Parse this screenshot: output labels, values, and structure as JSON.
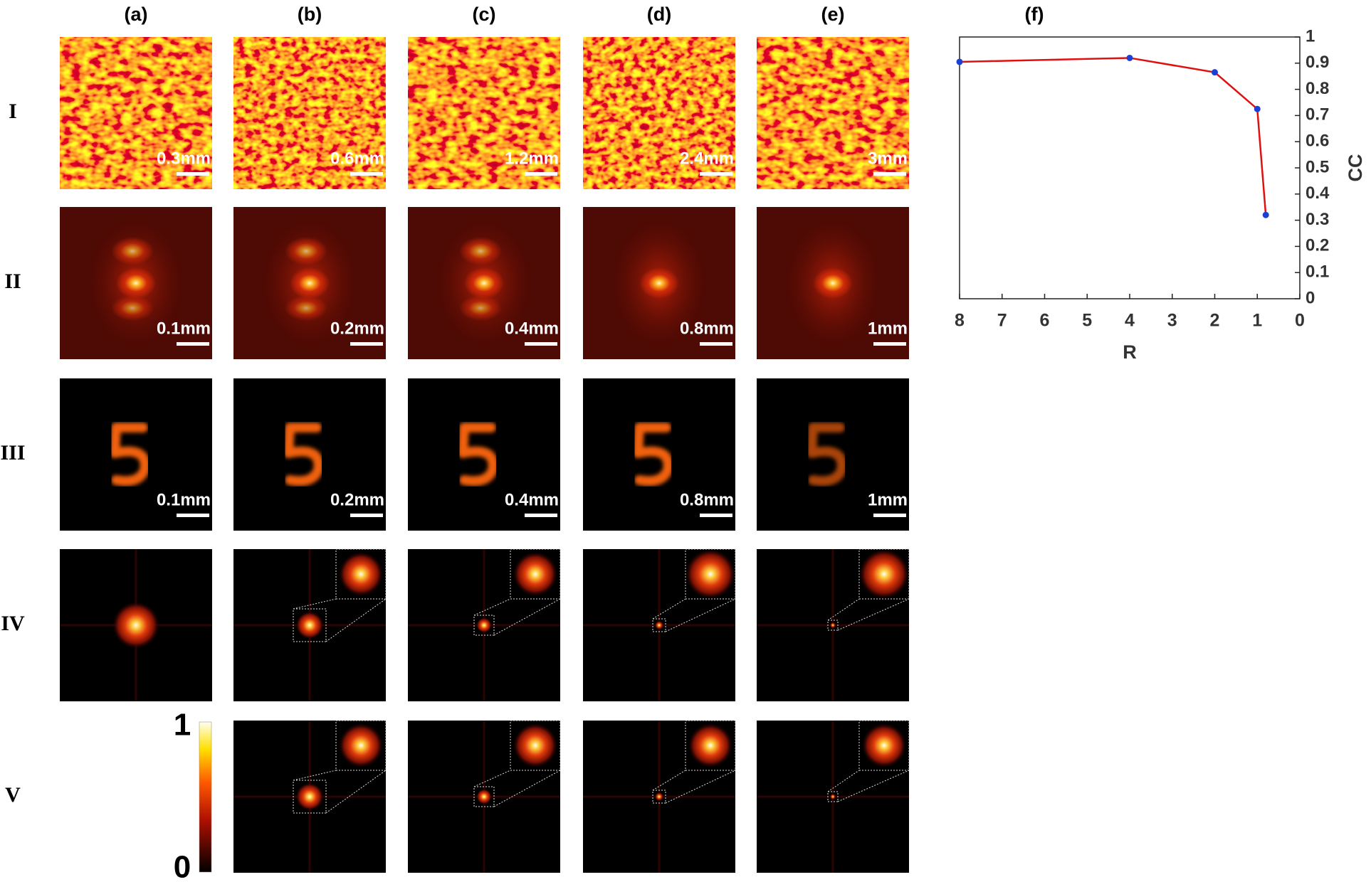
{
  "columns": [
    "(a)",
    "(b)",
    "(c)",
    "(d)",
    "(e)"
  ],
  "rows": [
    "I",
    "II",
    "III",
    "IV",
    "V"
  ],
  "scale_bars": [
    [
      "0.3mm",
      "0.6mm",
      "1.2mm",
      "2.4mm",
      "3mm"
    ],
    [
      "0.1mm",
      "0.2mm",
      "0.4mm",
      "0.8mm",
      "1mm"
    ],
    [
      "0.1mm",
      "0.2mm",
      "0.4mm",
      "0.8mm",
      "1mm"
    ]
  ],
  "colorbar": {
    "ticks": [
      1,
      0
    ]
  },
  "chart_data": {
    "type": "line",
    "title": "(f)",
    "x_label": "R",
    "y_label": "CC",
    "x": [
      8,
      4,
      2,
      1,
      0.8
    ],
    "values": [
      0.905,
      0.92,
      0.865,
      0.725,
      0.32
    ],
    "color": "#e01010",
    "marker_color": "#1d3fd6",
    "xlim": [
      8,
      0
    ],
    "xticks": [
      8,
      7,
      6,
      5,
      4,
      3,
      2,
      1,
      0
    ],
    "ylim": [
      0,
      1
    ],
    "yticks": [
      0,
      0.1,
      0.2,
      0.3,
      0.4,
      0.5,
      0.6,
      0.7,
      0.8,
      0.9,
      1
    ],
    "grid": false
  }
}
